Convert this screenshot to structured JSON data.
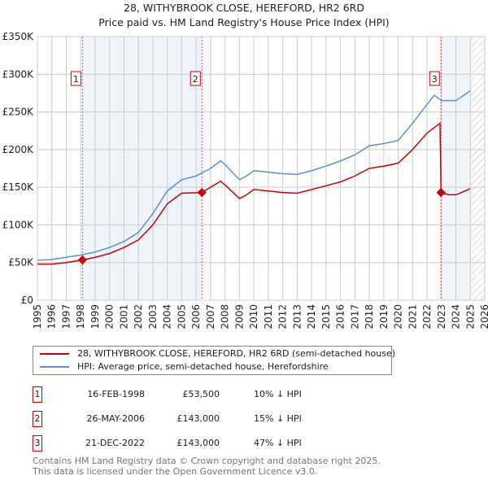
{
  "title": "28, WITHYBROOK CLOSE, HEREFORD, HR2 6RD",
  "subtitle": "Price paid vs. HM Land Registry's House Price Index (HPI)",
  "chart_data": {
    "type": "line",
    "xlim": [
      1995,
      2026
    ],
    "ylim": [
      0,
      350000
    ],
    "y_ticks": [
      {
        "v": 0,
        "label": "£0"
      },
      {
        "v": 50000,
        "label": "£50K"
      },
      {
        "v": 100000,
        "label": "£100K"
      },
      {
        "v": 150000,
        "label": "£150K"
      },
      {
        "v": 200000,
        "label": "£200K"
      },
      {
        "v": 250000,
        "label": "£250K"
      },
      {
        "v": 300000,
        "label": "£300K"
      },
      {
        "v": 350000,
        "label": "£350K"
      }
    ],
    "x_ticks": [
      "1995",
      "1996",
      "1997",
      "1998",
      "1999",
      "2000",
      "2001",
      "2002",
      "2003",
      "2004",
      "2005",
      "2006",
      "2007",
      "2008",
      "2009",
      "2010",
      "2011",
      "2012",
      "2013",
      "2014",
      "2015",
      "2016",
      "2017",
      "2018",
      "2019",
      "2020",
      "2021",
      "2022",
      "2023",
      "2024",
      "2025",
      "2026"
    ],
    "shaded_ranges": [
      [
        1998.12,
        2006.4
      ],
      [
        2022.97,
        2025.05
      ]
    ],
    "hatched_from": 2025.05,
    "series": [
      {
        "name": "28, WITHYBROOK CLOSE, HEREFORD, HR2 6RD (semi-detached house)",
        "color": "#cc0000",
        "x": [
          1995,
          1996,
          1997,
          1998.12,
          1999,
          2000,
          2001,
          2002,
          2003,
          2004,
          2005,
          2006.4,
          2007,
          2007.7,
          2008,
          2009,
          2009.5,
          2010,
          2011,
          2012,
          2013,
          2014,
          2015,
          2016,
          2017,
          2018,
          2019,
          2020,
          2021,
          2022,
          2022.9,
          2022.97,
          2023.5,
          2024,
          2025
        ],
        "y": [
          48000,
          48000,
          50000,
          53500,
          57000,
          62000,
          70000,
          80000,
          100000,
          128000,
          142000,
          143000,
          150000,
          158000,
          153000,
          135000,
          140000,
          147000,
          145000,
          143000,
          142000,
          147000,
          152000,
          157000,
          165000,
          175000,
          178000,
          182000,
          200000,
          222000,
          235000,
          143000,
          140000,
          140000,
          148000
        ]
      },
      {
        "name": "HPI: Average price, semi-detached house, Herefordshire",
        "color": "#5b8fd6",
        "x": [
          1995,
          1996,
          1997,
          1998,
          1999,
          2000,
          2001,
          2002,
          2003,
          2004,
          2005,
          2006,
          2007,
          2007.7,
          2008,
          2009,
          2009.5,
          2010,
          2011,
          2012,
          2013,
          2014,
          2015,
          2016,
          2017,
          2018,
          2019,
          2020,
          2021,
          2022,
          2022.5,
          2023,
          2024,
          2025
        ],
        "y": [
          53000,
          54000,
          57000,
          60000,
          64000,
          70000,
          78000,
          90000,
          115000,
          145000,
          160000,
          165000,
          175000,
          185000,
          180000,
          160000,
          165000,
          172000,
          170000,
          168000,
          167000,
          172000,
          178000,
          185000,
          193000,
          205000,
          208000,
          212000,
          235000,
          260000,
          272000,
          265000,
          265000,
          278000
        ]
      }
    ],
    "sales": [
      {
        "n": "1",
        "x": 1998.12,
        "y": 53500
      },
      {
        "n": "2",
        "x": 2006.4,
        "y": 143000
      },
      {
        "n": "3",
        "x": 2022.97,
        "y": 143000
      }
    ]
  },
  "legend": {
    "red": "28, WITHYBROOK CLOSE, HEREFORD, HR2 6RD (semi-detached house)",
    "blue": "HPI: Average price, semi-detached house, Herefordshire"
  },
  "table": [
    {
      "n": "1",
      "date": "16-FEB-1998",
      "price": "£53,500",
      "pct": "10% ↓ HPI"
    },
    {
      "n": "2",
      "date": "26-MAY-2006",
      "price": "£143,000",
      "pct": "15% ↓ HPI"
    },
    {
      "n": "3",
      "date": "21-DEC-2022",
      "price": "£143,000",
      "pct": "47% ↓ HPI"
    }
  ],
  "footer": {
    "line1": "Contains HM Land Registry data © Crown copyright and database right 2025.",
    "line2": "This data is licensed under the Open Government Licence v3.0."
  }
}
